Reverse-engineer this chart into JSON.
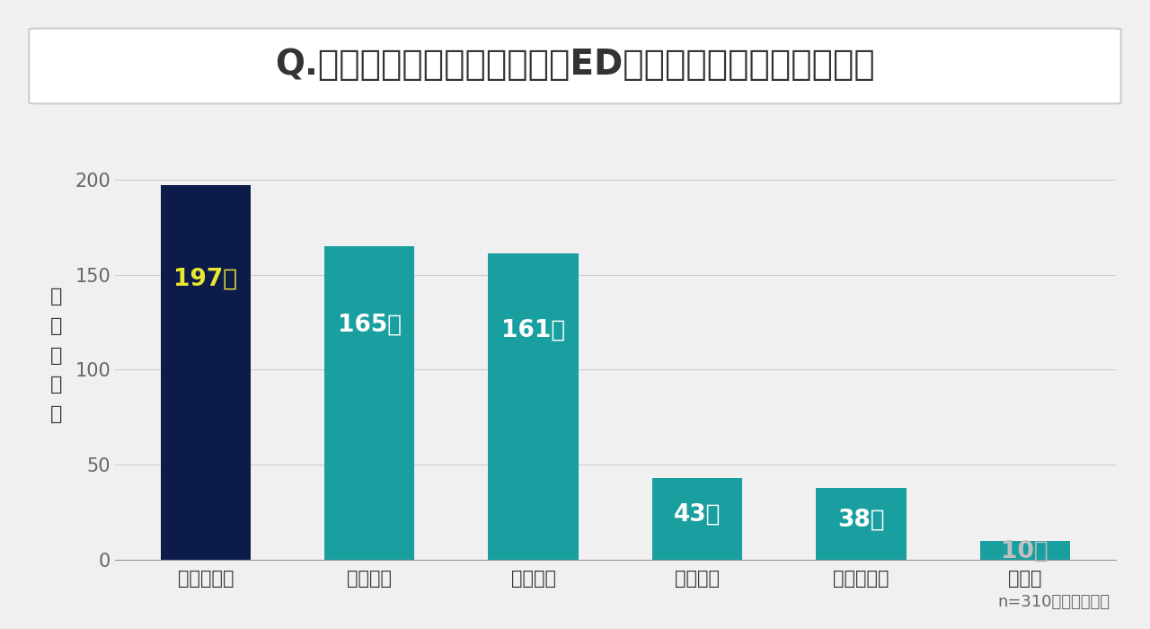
{
  "title": "Q.お使いになったことがあるED治療薬をお選びください。",
  "categories": [
    "バイアグラ",
    "シアリス",
    "レビトラ",
    "ザイデナ",
    "ステンドラ",
    "その他"
  ],
  "values": [
    197,
    165,
    161,
    43,
    38,
    10
  ],
  "bar_colors": [
    "#0d1b4b",
    "#1a9fa0",
    "#1a9fa0",
    "#1a9fa0",
    "#1a9fa0",
    "#1a9fa0"
  ],
  "label_colors": [
    "#e8e832",
    "#ffffff",
    "#ffffff",
    "#ffffff",
    "#ffffff",
    "#c0c0c0"
  ],
  "labels": [
    "197人",
    "165人",
    "161人",
    "43人",
    "38人",
    "10人"
  ],
  "ylabel": "選\nん\nだ\n人\n数",
  "ylim": [
    0,
    215
  ],
  "yticks": [
    0,
    50,
    100,
    150,
    200
  ],
  "background_color": "#f0f0f0",
  "title_bg_color": "#ffffff",
  "footnote": "n=310（複数回答）",
  "title_fontsize": 28,
  "label_fontsize": 19,
  "tick_fontsize": 15,
  "ylabel_fontsize": 16,
  "footnote_fontsize": 13
}
